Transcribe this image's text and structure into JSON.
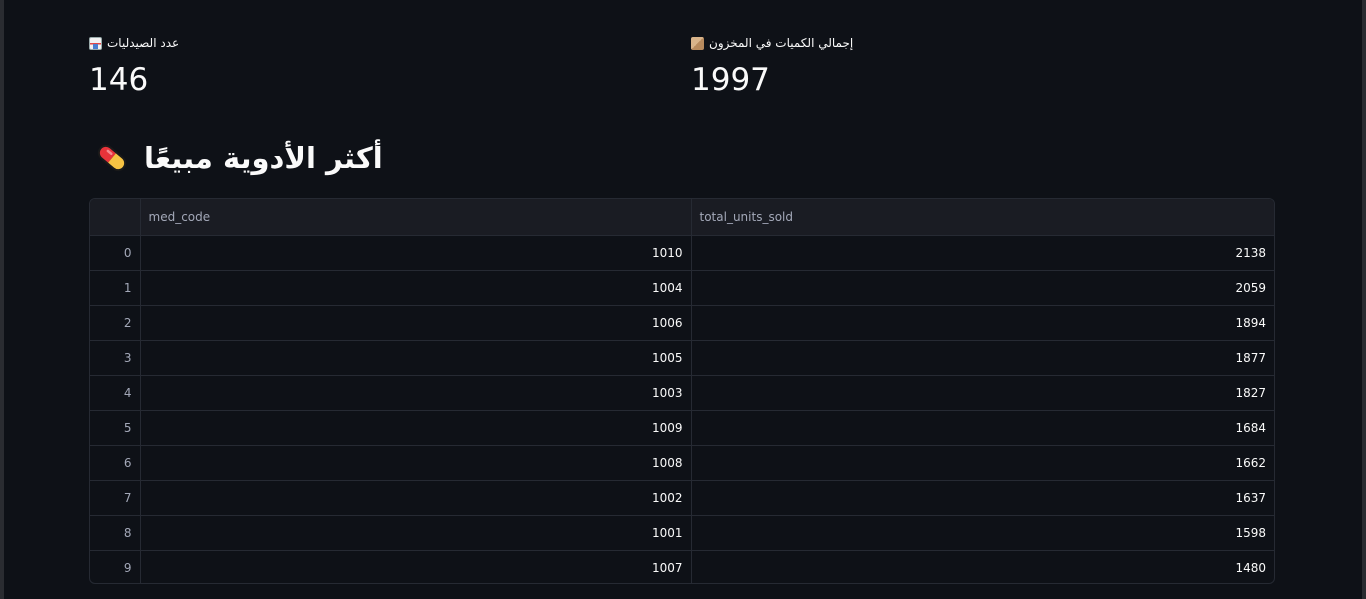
{
  "metrics": [
    {
      "label": "عدد الصيدليات",
      "value": "146",
      "icon": "pharmacy-icon"
    },
    {
      "label": "إجمالي الكميات في المخزون",
      "value": "1997",
      "icon": "box-icon"
    }
  ],
  "section": {
    "title": "أكثر الأدوية مبيعًا",
    "icon": "pill-icon"
  },
  "table": {
    "columns": [
      "",
      "med_code",
      "total_units_sold"
    ],
    "rows": [
      {
        "index": "0",
        "med_code": "1010",
        "total_units_sold": "2138"
      },
      {
        "index": "1",
        "med_code": "1004",
        "total_units_sold": "2059"
      },
      {
        "index": "2",
        "med_code": "1006",
        "total_units_sold": "1894"
      },
      {
        "index": "3",
        "med_code": "1005",
        "total_units_sold": "1877"
      },
      {
        "index": "4",
        "med_code": "1003",
        "total_units_sold": "1827"
      },
      {
        "index": "5",
        "med_code": "1009",
        "total_units_sold": "1684"
      },
      {
        "index": "6",
        "med_code": "1008",
        "total_units_sold": "1662"
      },
      {
        "index": "7",
        "med_code": "1002",
        "total_units_sold": "1637"
      },
      {
        "index": "8",
        "med_code": "1001",
        "total_units_sold": "1598"
      },
      {
        "index": "9",
        "med_code": "1007",
        "total_units_sold": "1480"
      }
    ]
  },
  "colors": {
    "background": "#0e1117",
    "header_bg": "#1a1c23",
    "grid": "#262a33",
    "text": "#fafafa",
    "muted": "#a3a8b8"
  }
}
